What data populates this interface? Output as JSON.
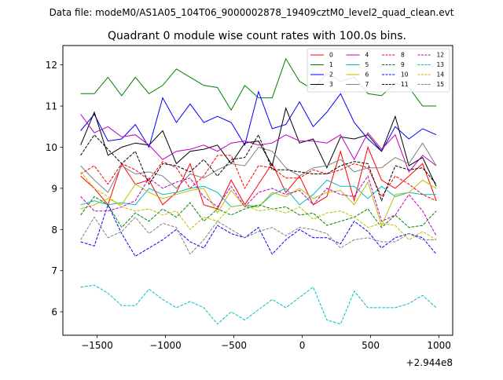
{
  "header": {
    "data_file": "Data file: modeM0/AS1A05_104T06_9000002878_19409cztM0_level2_quad_clean.evt"
  },
  "chart_data": {
    "type": "line",
    "title": "Quadrant 0 module wise count rates with 100.0s bins.",
    "xlabel": "",
    "ylabel": "",
    "x_offset_label": "+2.944e8",
    "xlim": [
      -1750,
      1100
    ],
    "ylim": [
      5.43,
      12.47
    ],
    "xticks": [
      -1500,
      -1000,
      -500,
      0,
      500,
      1000
    ],
    "xtick_labels": [
      "−1500",
      "−1000",
      "−500",
      "0",
      "500",
      "1000"
    ],
    "yticks": [
      6,
      7,
      8,
      9,
      10,
      11,
      12
    ],
    "ytick_labels": [
      "6",
      "7",
      "8",
      "9",
      "10",
      "11",
      "12"
    ],
    "legend_position": "top-right",
    "x": [
      -1620,
      -1520,
      -1420,
      -1320,
      -1220,
      -1120,
      -1020,
      -920,
      -820,
      -720,
      -620,
      -520,
      -420,
      -320,
      -220,
      -120,
      -20,
      80,
      180,
      280,
      380,
      480,
      580,
      680,
      780,
      880,
      980
    ],
    "series": [
      {
        "name": "0",
        "color": "#ff0000",
        "dash": "solid",
        "values": [
          9.3,
          9.0,
          8.6,
          9.6,
          9.1,
          9.2,
          8.6,
          8.9,
          9.6,
          8.6,
          8.5,
          9.2,
          8.6,
          9.1,
          9.6,
          8.9,
          9.3,
          8.6,
          8.8,
          9.9,
          8.7,
          10.0,
          9.2,
          9.0,
          9.3,
          9.6,
          8.7
        ]
      },
      {
        "name": "1",
        "color": "#008000",
        "dash": "solid",
        "values": [
          11.3,
          11.3,
          11.7,
          11.25,
          11.7,
          11.3,
          11.5,
          11.9,
          11.7,
          11.5,
          11.45,
          10.9,
          11.5,
          11.2,
          11.2,
          12.15,
          11.6,
          11.4,
          11.8,
          11.6,
          11.7,
          11.3,
          11.25,
          11.55,
          11.45,
          11.0,
          11.0
        ]
      },
      {
        "name": "2",
        "color": "#0000ff",
        "dash": "solid",
        "values": [
          10.4,
          10.8,
          10.15,
          10.2,
          10.55,
          10.0,
          11.2,
          10.6,
          11.05,
          10.6,
          10.75,
          10.6,
          10.05,
          11.35,
          10.45,
          10.55,
          11.1,
          10.5,
          10.85,
          11.3,
          10.6,
          10.2,
          9.9,
          10.5,
          10.2,
          10.45,
          10.3
        ]
      },
      {
        "name": "3",
        "color": "#000000",
        "dash": "solid",
        "values": [
          10.05,
          10.85,
          9.8,
          10.0,
          10.1,
          10.05,
          10.4,
          9.6,
          9.9,
          9.95,
          10.05,
          9.6,
          10.1,
          10.15,
          9.55,
          10.95,
          10.1,
          10.2,
          9.5,
          10.25,
          10.2,
          10.3,
          9.9,
          10.75,
          9.55,
          9.75,
          9.05
        ]
      },
      {
        "name": "4",
        "color": "#bf00bf",
        "dash": "solid",
        "values": [
          10.8,
          10.35,
          10.5,
          10.25,
          10.3,
          10.05,
          9.7,
          9.9,
          9.95,
          10.05,
          9.9,
          10.1,
          10.15,
          10.05,
          10.1,
          10.3,
          10.15,
          10.15,
          10.1,
          10.3,
          9.7,
          10.35,
          9.95,
          10.3,
          9.4,
          9.8,
          9.55
        ]
      },
      {
        "name": "5",
        "color": "#00bfbf",
        "dash": "solid",
        "values": [
          8.6,
          8.7,
          8.6,
          8.65,
          8.6,
          9.0,
          8.85,
          8.9,
          9.0,
          9.05,
          8.9,
          8.55,
          8.6,
          8.55,
          8.85,
          9.0,
          8.6,
          8.85,
          9.2,
          9.05,
          9.05,
          8.75,
          9.05,
          8.8,
          8.9,
          8.85,
          8.85
        ]
      },
      {
        "name": "6",
        "color": "#bfbf00",
        "dash": "solid",
        "values": [
          8.5,
          8.6,
          8.75,
          8.6,
          9.1,
          8.9,
          8.75,
          8.85,
          8.95,
          9.0,
          8.4,
          8.95,
          8.55,
          8.55,
          8.9,
          8.8,
          9.0,
          8.75,
          8.9,
          8.95,
          8.6,
          9.15,
          8.1,
          8.85,
          8.9,
          9.2,
          9.0
        ]
      },
      {
        "name": "7",
        "color": "#808080",
        "dash": "solid",
        "values": [
          9.55,
          9.2,
          8.9,
          9.55,
          9.35,
          9.4,
          9.3,
          9.0,
          9.35,
          9.25,
          9.45,
          9.6,
          9.55,
          10.0,
          9.9,
          9.5,
          9.3,
          9.5,
          9.55,
          9.7,
          9.4,
          9.5,
          9.5,
          9.75,
          9.6,
          10.1,
          9.55
        ]
      },
      {
        "name": "8",
        "color": "#ff0000",
        "dash": "dashed",
        "values": [
          9.35,
          9.55,
          9.1,
          9.6,
          9.45,
          9.2,
          9.65,
          9.5,
          9.0,
          9.3,
          9.8,
          9.8,
          9.0,
          9.55,
          9.5,
          9.25,
          9.25,
          9.45,
          9.35,
          9.45,
          9.6,
          9.5,
          8.8,
          9.3,
          9.1,
          8.85,
          8.7
        ]
      },
      {
        "name": "9",
        "color": "#008000",
        "dash": "dashed",
        "values": [
          8.35,
          8.8,
          8.6,
          8.05,
          8.4,
          8.2,
          8.5,
          8.3,
          8.65,
          8.2,
          8.5,
          8.35,
          8.5,
          8.6,
          8.5,
          8.55,
          8.35,
          8.4,
          8.1,
          8.2,
          8.3,
          8.5,
          8.05,
          8.35,
          8.05,
          8.1,
          8.45
        ]
      },
      {
        "name": "10",
        "color": "#0000ff",
        "dash": "dashed",
        "values": [
          7.7,
          7.6,
          8.6,
          7.9,
          7.35,
          7.55,
          7.75,
          8.0,
          7.7,
          7.55,
          8.1,
          7.9,
          7.8,
          8.05,
          7.4,
          7.75,
          8.0,
          7.8,
          7.8,
          7.65,
          8.2,
          7.95,
          7.55,
          7.8,
          7.9,
          7.8,
          7.4
        ]
      },
      {
        "name": "11",
        "color": "#000000",
        "dash": "dashed",
        "values": [
          9.8,
          10.3,
          9.95,
          9.6,
          9.9,
          9.1,
          9.6,
          9.55,
          9.4,
          9.7,
          9.3,
          9.7,
          9.75,
          10.3,
          9.45,
          9.45,
          9.4,
          9.35,
          9.35,
          9.55,
          9.65,
          9.6,
          8.7,
          9.55,
          9.45,
          9.5,
          9.1
        ]
      },
      {
        "name": "12",
        "color": "#bf00bf",
        "dash": "dashed",
        "values": [
          8.8,
          8.45,
          8.45,
          8.55,
          8.7,
          9.25,
          9.0,
          9.15,
          9.25,
          8.8,
          8.55,
          9.05,
          8.55,
          8.9,
          9.0,
          8.85,
          8.95,
          8.6,
          9.0,
          8.85,
          8.8,
          9.3,
          8.2,
          8.35,
          8.85,
          8.45,
          7.85
        ]
      },
      {
        "name": "13",
        "color": "#00bfbf",
        "dash": "dashed",
        "values": [
          6.6,
          6.65,
          6.45,
          6.15,
          6.15,
          6.55,
          6.3,
          6.1,
          6.25,
          6.1,
          5.7,
          6.0,
          5.8,
          6.05,
          6.3,
          6.1,
          6.35,
          6.6,
          5.8,
          5.7,
          6.5,
          6.1,
          6.1,
          6.1,
          6.2,
          6.4,
          6.1
        ]
      },
      {
        "name": "14",
        "color": "#bfbf00",
        "dash": "dashed",
        "values": [
          9.4,
          9.0,
          8.8,
          8.55,
          8.45,
          8.5,
          8.35,
          8.45,
          8.0,
          8.3,
          8.2,
          8.55,
          8.6,
          8.45,
          8.5,
          8.4,
          8.55,
          8.25,
          8.4,
          8.45,
          8.3,
          8.05,
          8.15,
          8.1,
          7.75,
          7.95,
          7.75
        ]
      },
      {
        "name": "15",
        "color": "#808080",
        "dash": "dashed",
        "values": [
          7.75,
          8.3,
          7.8,
          7.95,
          8.3,
          7.9,
          8.15,
          8.05,
          7.4,
          7.75,
          8.2,
          8.0,
          7.8,
          7.95,
          8.05,
          7.85,
          8.05,
          8.0,
          7.9,
          7.55,
          7.75,
          7.8,
          7.7,
          7.7,
          7.9,
          7.75,
          7.75
        ]
      }
    ]
  }
}
